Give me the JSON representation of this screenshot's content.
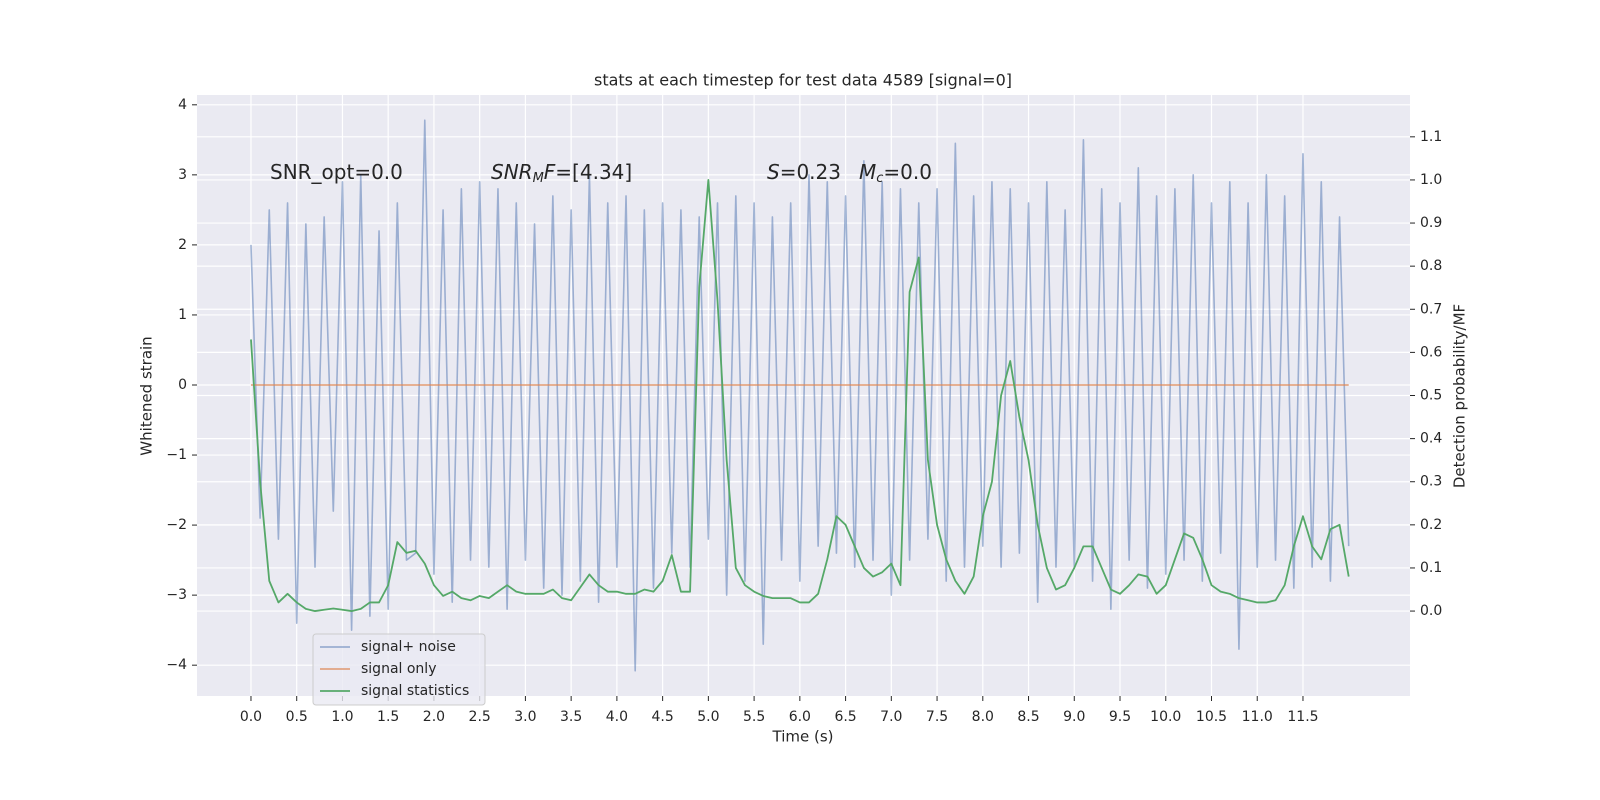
{
  "chart_data": {
    "type": "line",
    "title": "stats at each timestep for test data 4589 [signal=0]",
    "x_label": "Time (s)",
    "y_label": "Whitened strain",
    "y2_label": "Detection probability/MF",
    "grid": true,
    "legend": "lower left",
    "background": "#eaeaf2",
    "xlim": [
      -0.59,
      12.67
    ],
    "ylim": [
      -4.44,
      4.14
    ],
    "y2lim": [
      -0.197,
      1.197
    ],
    "xticks": [
      {
        "value": 0,
        "label": "0.0"
      },
      {
        "value": 0.5,
        "label": "0.5"
      },
      {
        "value": 1,
        "label": "1.0"
      },
      {
        "value": 1.5,
        "label": "1.5"
      },
      {
        "value": 2,
        "label": "2.0"
      },
      {
        "value": 2.5,
        "label": "2.5"
      },
      {
        "value": 3,
        "label": "3.0"
      },
      {
        "value": 3.5,
        "label": "3.5"
      },
      {
        "value": 4,
        "label": "4.0"
      },
      {
        "value": 4.5,
        "label": "4.5"
      },
      {
        "value": 5,
        "label": "5.0"
      },
      {
        "value": 5.5,
        "label": "5.5"
      },
      {
        "value": 6,
        "label": "6.0"
      },
      {
        "value": 6.5,
        "label": "6.5"
      },
      {
        "value": 7,
        "label": "7.0"
      },
      {
        "value": 7.5,
        "label": "7.5"
      },
      {
        "value": 8,
        "label": "8.0"
      },
      {
        "value": 8.5,
        "label": "8.5"
      },
      {
        "value": 9,
        "label": "9.0"
      },
      {
        "value": 9.5,
        "label": "9.5"
      },
      {
        "value": 10,
        "label": "10.0"
      },
      {
        "value": 10.5,
        "label": "10.5"
      },
      {
        "value": 11,
        "label": "11.0"
      },
      {
        "value": 11.5,
        "label": "11.5"
      }
    ],
    "yticks": [
      {
        "value": -4,
        "label": "−4"
      },
      {
        "value": -3,
        "label": "−3"
      },
      {
        "value": -2,
        "label": "−2"
      },
      {
        "value": -1,
        "label": "−1"
      },
      0,
      1,
      2,
      3,
      4
    ],
    "y2ticks": [
      {
        "value": 0,
        "label": "0.0"
      },
      0.1,
      0.2,
      0.3,
      0.4,
      0.5,
      0.6,
      0.7,
      0.8,
      0.9,
      {
        "value": 1,
        "label": "1.0"
      },
      1.1
    ],
    "annotations": [
      {
        "parts": [
          {
            "text": "SNR_opt=0.0"
          }
        ]
      },
      {
        "parts": [
          {
            "text": "SNR",
            "italic": true
          },
          {
            "text": "M",
            "italic": true,
            "sub": true
          },
          {
            "text": "F",
            "italic": true
          },
          {
            "text": "=[4.34]"
          }
        ]
      },
      {
        "parts": [
          {
            "text": "S",
            "italic": true
          },
          {
            "text": "=0.23"
          }
        ]
      },
      {
        "parts": [
          {
            "text": "M",
            "italic": true
          },
          {
            "text": "c",
            "italic": true,
            "sub": true
          },
          {
            "text": "=0.0"
          }
        ]
      }
    ],
    "x": [
      0,
      0.1,
      0.2,
      0.3,
      0.4,
      0.5,
      0.6,
      0.7,
      0.8,
      0.9,
      1,
      1.1,
      1.2,
      1.3,
      1.4,
      1.5,
      1.6,
      1.7,
      1.8,
      1.9,
      2,
      2.1,
      2.2,
      2.3,
      2.4,
      2.5,
      2.6,
      2.7,
      2.8,
      2.9,
      3,
      3.1,
      3.2,
      3.3,
      3.4,
      3.5,
      3.6,
      3.7,
      3.8,
      3.9,
      4,
      4.1,
      4.2,
      4.3,
      4.4,
      4.5,
      4.6,
      4.7,
      4.8,
      4.9,
      5,
      5.1,
      5.2,
      5.3,
      5.4,
      5.5,
      5.6,
      5.7,
      5.8,
      5.9,
      6,
      6.1,
      6.2,
      6.3,
      6.4,
      6.5,
      6.6,
      6.7,
      6.8,
      6.9,
      7,
      7.1,
      7.2,
      7.3,
      7.4,
      7.5,
      7.6,
      7.7,
      7.8,
      7.9,
      8,
      8.1,
      8.2,
      8.3,
      8.4,
      8.5,
      8.6,
      8.7,
      8.8,
      8.9,
      9,
      9.1,
      9.2,
      9.3,
      9.4,
      9.5,
      9.6,
      9.7,
      9.8,
      9.9,
      10,
      10.1,
      10.2,
      10.3,
      10.4,
      10.5,
      10.6,
      10.7,
      10.8,
      10.9,
      11,
      11.1,
      11.2,
      11.3,
      11.4,
      11.5,
      11.6,
      11.7,
      11.8,
      11.9,
      12
    ],
    "series": [
      {
        "name": "signal+ noise",
        "color": "#4c72b0",
        "opacity": 0.5,
        "values": [
          2.0,
          -1.9,
          2.5,
          -2.2,
          2.6,
          -3.4,
          2.3,
          -2.6,
          2.4,
          -1.8,
          2.9,
          -3.5,
          3.0,
          -3.3,
          2.2,
          -3.2,
          2.6,
          -2.5,
          -2.4,
          3.78,
          -2.7,
          2.5,
          -3.1,
          2.8,
          -2.5,
          2.9,
          -2.6,
          2.8,
          -3.2,
          2.6,
          -2.5,
          2.3,
          -2.9,
          2.7,
          -3.0,
          2.5,
          -2.8,
          3.0,
          -3.1,
          2.6,
          -2.6,
          2.7,
          -4.08,
          2.5,
          -2.9,
          2.6,
          -2.4,
          2.5,
          -2.6,
          2.4,
          -2.2,
          2.6,
          -3.0,
          2.7,
          -2.8,
          2.6,
          -3.7,
          2.4,
          -2.5,
          2.6,
          -2.8,
          3.0,
          -2.3,
          2.9,
          -2.4,
          2.7,
          -2.6,
          3.2,
          -2.5,
          2.9,
          -3.0,
          2.8,
          -2.5,
          2.6,
          -2.2,
          2.8,
          -2.8,
          3.45,
          -2.6,
          2.7,
          -2.3,
          2.9,
          -2.6,
          2.8,
          -2.4,
          2.6,
          -3.1,
          2.9,
          -2.6,
          2.5,
          -2.6,
          3.5,
          -2.8,
          2.8,
          -3.2,
          2.6,
          -2.5,
          3.1,
          -2.9,
          2.7,
          -2.7,
          2.8,
          -2.5,
          3.0,
          -2.8,
          2.6,
          -2.4,
          2.9,
          -3.77,
          2.6,
          -2.6,
          3.0,
          -2.5,
          2.7,
          -2.9,
          3.3,
          -2.6,
          2.9,
          -2.8,
          2.4,
          -2.3
        ]
      },
      {
        "name": "signal only",
        "color": "#dd8452",
        "opacity": 0.7,
        "values": [
          0,
          0,
          0,
          0,
          0,
          0,
          0,
          0,
          0,
          0,
          0,
          0,
          0,
          0,
          0,
          0,
          0,
          0,
          0,
          0,
          0,
          0,
          0,
          0,
          0,
          0,
          0,
          0,
          0,
          0,
          0,
          0,
          0,
          0,
          0,
          0,
          0,
          0,
          0,
          0,
          0,
          0,
          0,
          0,
          0,
          0,
          0,
          0,
          0,
          0,
          0,
          0,
          0,
          0,
          0,
          0,
          0,
          0,
          0,
          0,
          0,
          0,
          0,
          0,
          0,
          0,
          0,
          0,
          0,
          0,
          0,
          0,
          0,
          0,
          0,
          0,
          0,
          0,
          0,
          0,
          0,
          0,
          0,
          0,
          0,
          0,
          0,
          0,
          0,
          0,
          0,
          0,
          0,
          0,
          0,
          0,
          0,
          0,
          0,
          0,
          0,
          0,
          0,
          0,
          0,
          0,
          0,
          0,
          0,
          0,
          0,
          0,
          0,
          0,
          0,
          0,
          0,
          0,
          0,
          0,
          0
        ]
      },
      {
        "name": "signal statistics",
        "color": "#55a868",
        "opacity": 1,
        "axis": "y2",
        "values": [
          0.63,
          0.3,
          0.07,
          0.02,
          0.04,
          0.02,
          0.005,
          0.0,
          0.003,
          0.006,
          0.003,
          0.0,
          0.005,
          0.02,
          0.02,
          0.06,
          0.16,
          0.135,
          0.14,
          0.11,
          0.06,
          0.035,
          0.045,
          0.03,
          0.025,
          0.035,
          0.03,
          0.045,
          0.06,
          0.045,
          0.04,
          0.04,
          0.04,
          0.05,
          0.03,
          0.025,
          0.055,
          0.085,
          0.06,
          0.045,
          0.045,
          0.04,
          0.04,
          0.05,
          0.045,
          0.07,
          0.13,
          0.045,
          0.045,
          0.75,
          1.0,
          0.72,
          0.35,
          0.1,
          0.06,
          0.045,
          0.035,
          0.03,
          0.03,
          0.03,
          0.02,
          0.02,
          0.04,
          0.12,
          0.22,
          0.2,
          0.15,
          0.1,
          0.08,
          0.09,
          0.11,
          0.06,
          0.74,
          0.82,
          0.35,
          0.2,
          0.12,
          0.07,
          0.04,
          0.08,
          0.22,
          0.3,
          0.5,
          0.58,
          0.45,
          0.35,
          0.2,
          0.1,
          0.05,
          0.06,
          0.1,
          0.15,
          0.15,
          0.1,
          0.05,
          0.04,
          0.06,
          0.085,
          0.08,
          0.04,
          0.06,
          0.12,
          0.18,
          0.17,
          0.12,
          0.06,
          0.045,
          0.04,
          0.03,
          0.025,
          0.02,
          0.02,
          0.025,
          0.06,
          0.15,
          0.22,
          0.15,
          0.12,
          0.19,
          0.2,
          0.08
        ]
      }
    ]
  }
}
